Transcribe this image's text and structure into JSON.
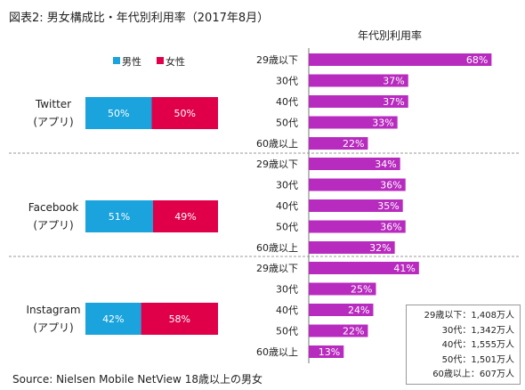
{
  "title": "図表2: 男女構成比・年代別利用率（2017年8月）",
  "source": "Source: Nielsen Mobile NetView 18歳以上の男女",
  "right_panel_title": "年代別利用率",
  "legend": {
    "male": "男性",
    "female": "女性"
  },
  "colors": {
    "male": "#1aa3dc",
    "female": "#e0004a",
    "age_bar": "#b82bbf",
    "separator": "#9a9a9a"
  },
  "chart_data": [
    {
      "type": "bar",
      "orientation": "horizontal-stacked",
      "categories": [
        "Twitter\n(アプリ)",
        "Facebook\n(アプリ)",
        "Instagram\n(アプリ)"
      ],
      "series": [
        {
          "name": "男性",
          "values": [
            50,
            51,
            42
          ]
        },
        {
          "name": "女性",
          "values": [
            50,
            49,
            58
          ]
        }
      ],
      "unit": "%",
      "xlim": [
        0,
        100
      ]
    },
    {
      "type": "bar",
      "orientation": "horizontal",
      "groups": [
        {
          "name": "Twitter\n(アプリ)",
          "categories": [
            "29歳以下",
            "30代",
            "40代",
            "50代",
            "60歳以上"
          ],
          "values": [
            68,
            37,
            37,
            33,
            22
          ]
        },
        {
          "name": "Facebook\n(アプリ)",
          "categories": [
            "29歳以下",
            "30代",
            "40代",
            "50代",
            "60歳以上"
          ],
          "values": [
            34,
            36,
            35,
            36,
            32
          ]
        },
        {
          "name": "Instagram\n(アプリ)",
          "categories": [
            "29歳以下",
            "30代",
            "40代",
            "50代",
            "60歳以上"
          ],
          "values": [
            41,
            25,
            24,
            22,
            13
          ]
        }
      ],
      "unit": "%",
      "title": "年代別利用率"
    }
  ],
  "base_counts": [
    "29歳以下：1,408万人",
    "30代：1,342万人",
    "40代：1,555万人",
    "50代：1,501万人",
    "60歳以上：607万人"
  ]
}
